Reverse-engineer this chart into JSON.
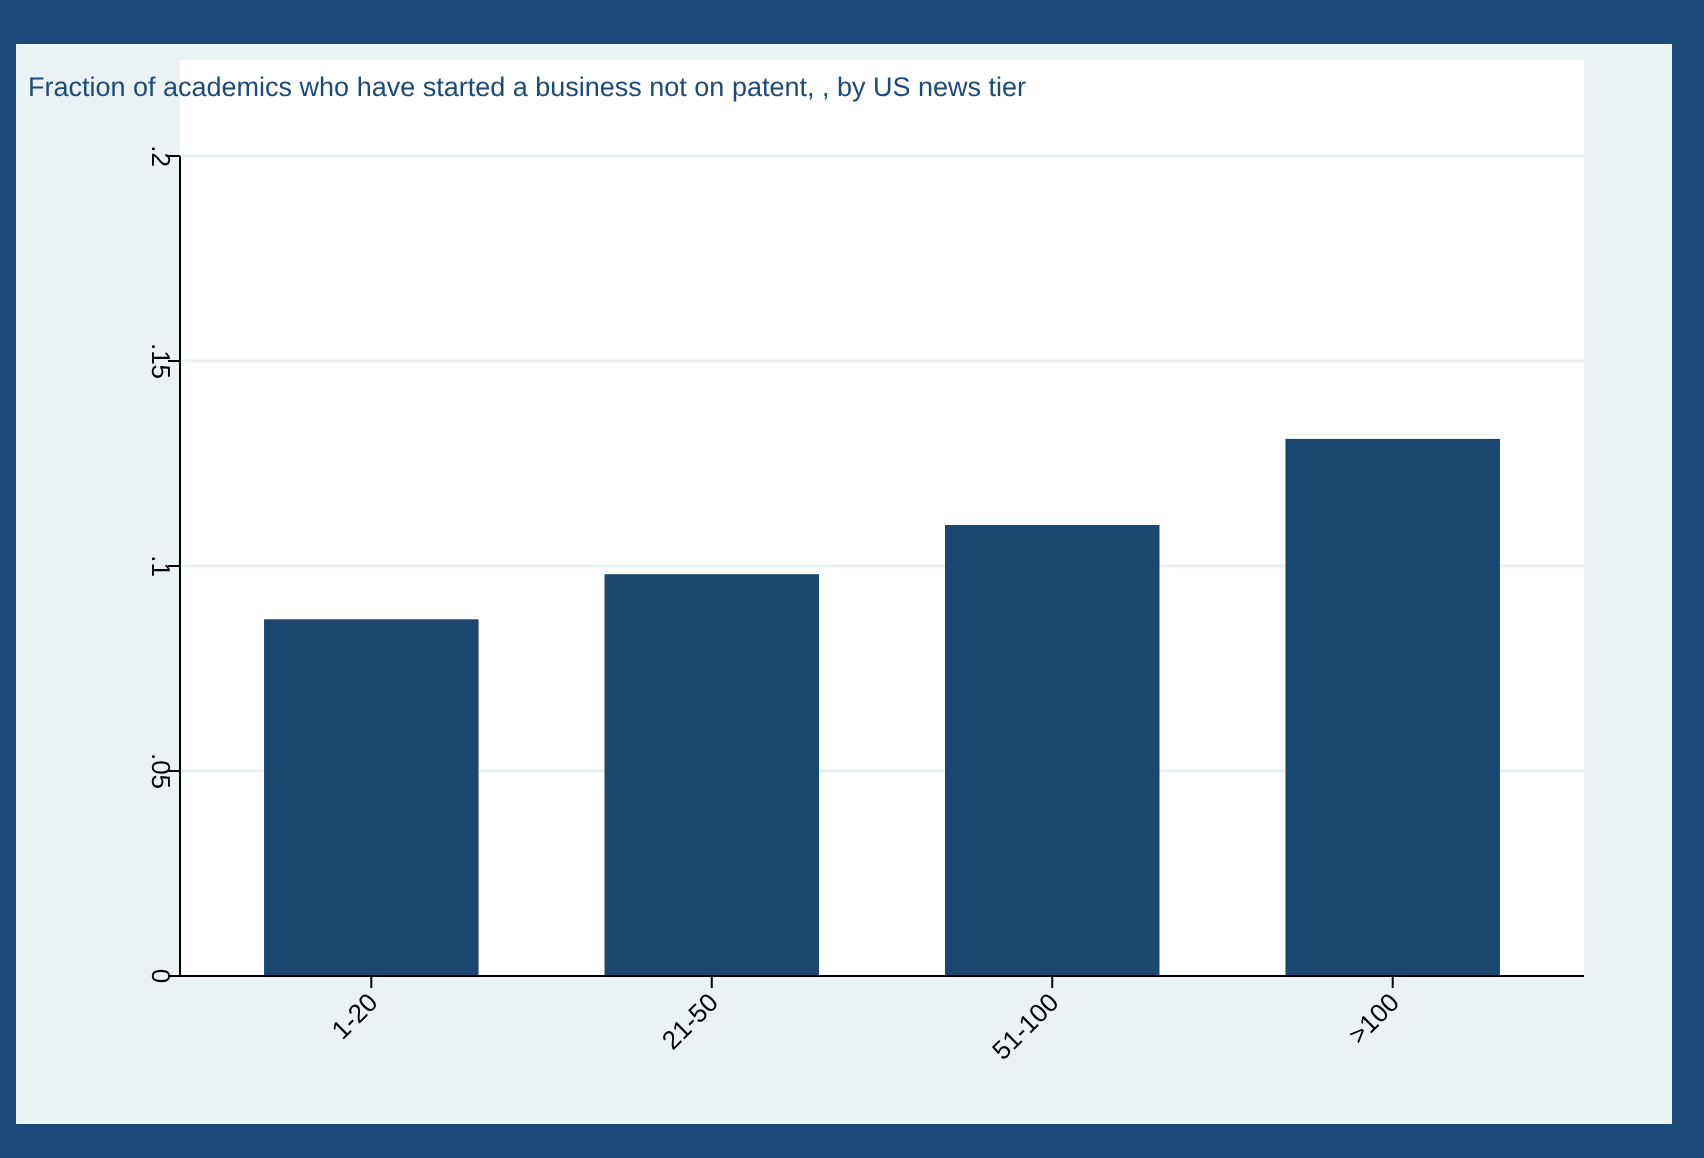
{
  "chart_data": {
    "type": "bar",
    "title": "Fraction of academics who have started a business not on patent, , by US news tier",
    "categories": [
      "1-20",
      "21-50",
      "51-100",
      ">100"
    ],
    "values": [
      0.087,
      0.098,
      0.11,
      0.131
    ],
    "color": "#1a476f",
    "ylim": [
      0,
      0.2
    ],
    "yticks": [
      {
        "value": 0,
        "label": "0"
      },
      {
        "value": 0.05,
        "label": ".05"
      },
      {
        "value": 0.1,
        "label": ".1"
      },
      {
        "value": 0.15,
        "label": ".15"
      },
      {
        "value": 0.2,
        "label": ".2"
      }
    ],
    "grid": "y"
  }
}
